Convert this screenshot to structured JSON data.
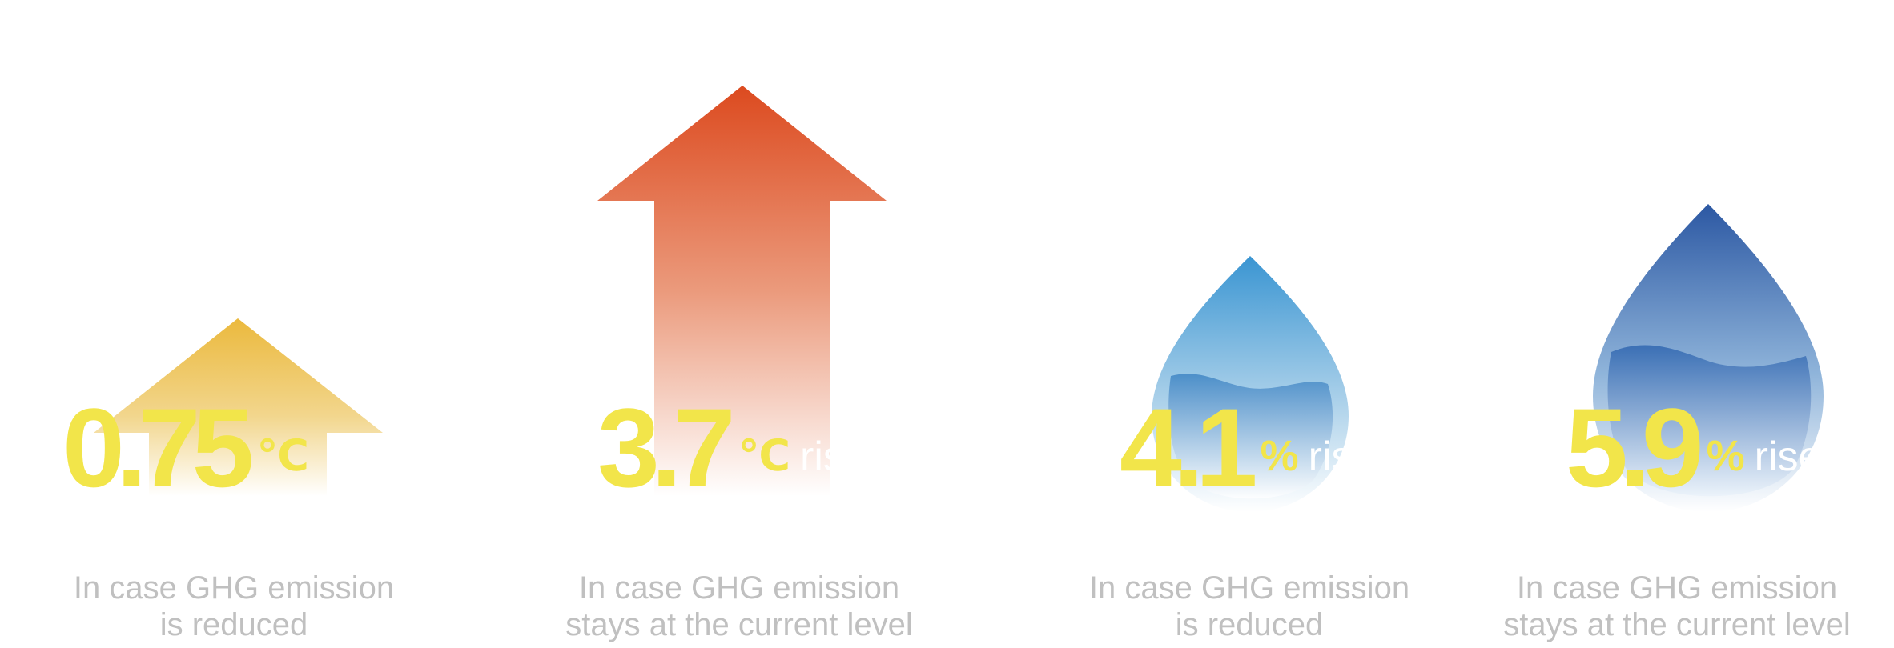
{
  "colors": {
    "number": "#f2e54a",
    "rise_text": "#ffffff",
    "caption": "#c0c0c0",
    "temp_low": "#ebb93d",
    "temp_high": "#dc4a1f",
    "water_low": "#3a95d2",
    "water_high": "#2c58a3"
  },
  "panels": [
    {
      "shape": "arrow-up",
      "value": "0.75",
      "unit": "℃",
      "rise_word": "",
      "caption_line1": "In case GHG emission",
      "caption_line2": "is reduced"
    },
    {
      "shape": "arrow-up",
      "value": "3.7",
      "unit": "℃",
      "rise_word": "rise",
      "caption_line1": "In case GHG emission",
      "caption_line2": "stays at the current level"
    },
    {
      "shape": "water-drop",
      "value": "4.1",
      "unit": "%",
      "rise_word": "rise",
      "caption_line1": "In case GHG emission",
      "caption_line2": "is reduced"
    },
    {
      "shape": "water-drop",
      "value": "5.9",
      "unit": "%",
      "rise_word": "rise",
      "caption_line1": "In case GHG emission",
      "caption_line2": "stays at the current level"
    }
  ]
}
